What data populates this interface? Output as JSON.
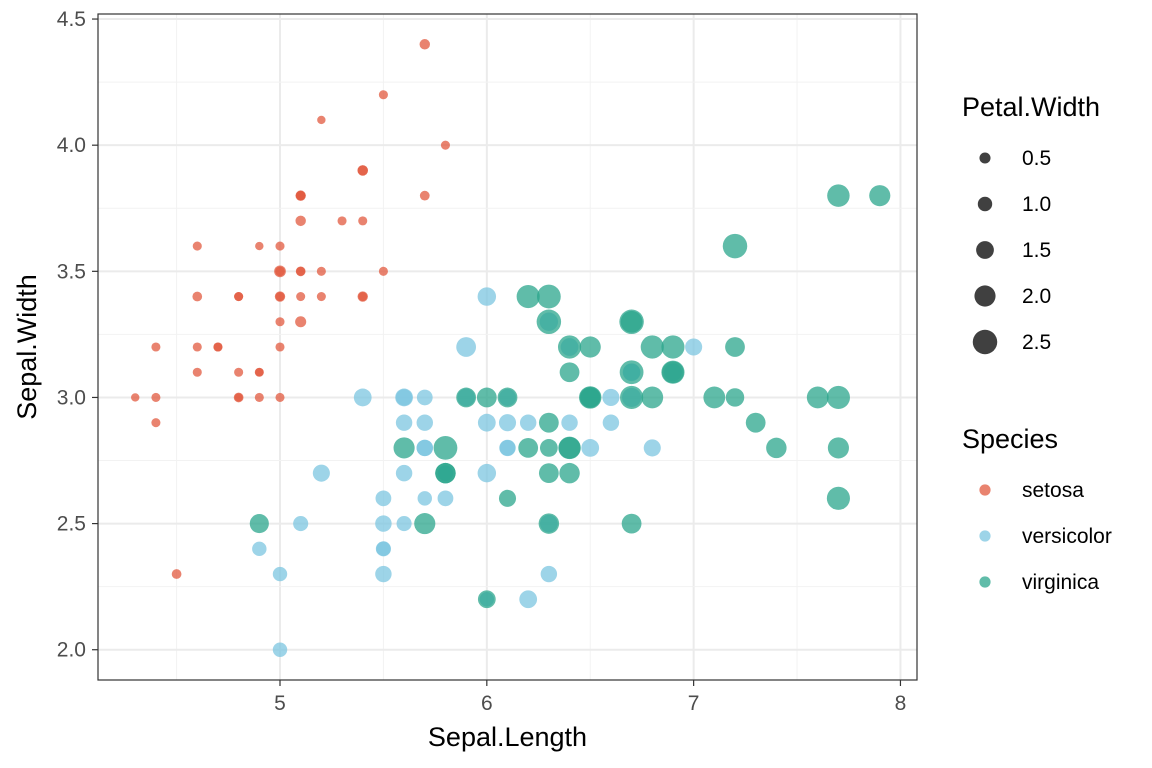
{
  "chart_data": {
    "type": "scatter",
    "title": "",
    "xlabel": "Sepal.Length",
    "ylabel": "Sepal.Width",
    "xlim": [
      4.12,
      8.08
    ],
    "ylim": [
      1.88,
      4.52
    ],
    "xticks": [
      5,
      6,
      7,
      8
    ],
    "yticks": [
      2.0,
      2.5,
      3.0,
      3.5,
      4.0,
      4.5
    ],
    "xtick_labels": [
      "5",
      "6",
      "7",
      "8"
    ],
    "ytick_labels": [
      "2.0",
      "2.5",
      "3.0",
      "3.5",
      "4.0",
      "4.5"
    ],
    "grid": true,
    "size_legend": {
      "title": "Petal.Width",
      "values": [
        0.5,
        1.0,
        1.5,
        2.0,
        2.5
      ],
      "labels": [
        "0.5",
        "1.0",
        "1.5",
        "2.0",
        "2.5"
      ]
    },
    "color_legend": {
      "title": "Species",
      "placement": "right"
    },
    "series": [
      {
        "name": "setosa",
        "color": "#E15A3F",
        "points": [
          [
            5.1,
            3.5,
            0.2
          ],
          [
            4.9,
            3.0,
            0.2
          ],
          [
            4.7,
            3.2,
            0.2
          ],
          [
            4.6,
            3.1,
            0.2
          ],
          [
            5.0,
            3.6,
            0.2
          ],
          [
            5.4,
            3.9,
            0.4
          ],
          [
            4.6,
            3.4,
            0.3
          ],
          [
            5.0,
            3.4,
            0.2
          ],
          [
            4.4,
            2.9,
            0.2
          ],
          [
            4.9,
            3.1,
            0.1
          ],
          [
            5.4,
            3.7,
            0.2
          ],
          [
            4.8,
            3.4,
            0.2
          ],
          [
            4.8,
            3.0,
            0.1
          ],
          [
            4.3,
            3.0,
            0.1
          ],
          [
            5.8,
            4.0,
            0.2
          ],
          [
            5.7,
            4.4,
            0.4
          ],
          [
            5.4,
            3.9,
            0.4
          ],
          [
            5.1,
            3.5,
            0.3
          ],
          [
            5.7,
            3.8,
            0.3
          ],
          [
            5.1,
            3.8,
            0.3
          ],
          [
            5.4,
            3.4,
            0.2
          ],
          [
            5.1,
            3.7,
            0.4
          ],
          [
            4.6,
            3.6,
            0.2
          ],
          [
            5.1,
            3.3,
            0.5
          ],
          [
            4.8,
            3.4,
            0.2
          ],
          [
            5.0,
            3.0,
            0.2
          ],
          [
            5.0,
            3.4,
            0.4
          ],
          [
            5.2,
            3.5,
            0.2
          ],
          [
            5.2,
            3.4,
            0.2
          ],
          [
            4.7,
            3.2,
            0.2
          ],
          [
            4.8,
            3.1,
            0.2
          ],
          [
            5.4,
            3.4,
            0.4
          ],
          [
            5.2,
            4.1,
            0.1
          ],
          [
            5.5,
            4.2,
            0.2
          ],
          [
            4.9,
            3.1,
            0.2
          ],
          [
            5.0,
            3.2,
            0.2
          ],
          [
            5.5,
            3.5,
            0.2
          ],
          [
            4.9,
            3.6,
            0.1
          ],
          [
            4.4,
            3.0,
            0.2
          ],
          [
            5.1,
            3.4,
            0.2
          ],
          [
            5.0,
            3.5,
            0.3
          ],
          [
            4.5,
            2.3,
            0.3
          ],
          [
            4.4,
            3.2,
            0.2
          ],
          [
            5.0,
            3.5,
            0.6
          ],
          [
            5.1,
            3.8,
            0.4
          ],
          [
            4.8,
            3.0,
            0.3
          ],
          [
            5.1,
            3.8,
            0.2
          ],
          [
            4.6,
            3.2,
            0.2
          ],
          [
            5.3,
            3.7,
            0.2
          ],
          [
            5.0,
            3.3,
            0.2
          ]
        ]
      },
      {
        "name": "versicolor",
        "color": "#7CC6E0",
        "points": [
          [
            7.0,
            3.2,
            1.4
          ],
          [
            6.4,
            3.2,
            1.5
          ],
          [
            6.9,
            3.1,
            1.5
          ],
          [
            5.5,
            2.3,
            1.3
          ],
          [
            6.5,
            2.8,
            1.5
          ],
          [
            5.7,
            2.8,
            1.3
          ],
          [
            6.3,
            3.3,
            1.6
          ],
          [
            4.9,
            2.4,
            1.0
          ],
          [
            6.6,
            2.9,
            1.3
          ],
          [
            5.2,
            2.7,
            1.4
          ],
          [
            5.0,
            2.0,
            1.0
          ],
          [
            5.9,
            3.0,
            1.5
          ],
          [
            6.0,
            2.2,
            1.0
          ],
          [
            6.1,
            2.9,
            1.4
          ],
          [
            5.6,
            2.9,
            1.3
          ],
          [
            6.7,
            3.1,
            1.4
          ],
          [
            5.6,
            3.0,
            1.5
          ],
          [
            5.8,
            2.7,
            1.0
          ],
          [
            6.2,
            2.2,
            1.5
          ],
          [
            5.6,
            2.5,
            1.1
          ],
          [
            5.9,
            3.2,
            1.8
          ],
          [
            6.1,
            2.8,
            1.3
          ],
          [
            6.3,
            2.5,
            1.5
          ],
          [
            6.1,
            2.8,
            1.2
          ],
          [
            6.4,
            2.9,
            1.3
          ],
          [
            6.6,
            3.0,
            1.4
          ],
          [
            6.8,
            2.8,
            1.4
          ],
          [
            6.7,
            3.0,
            1.7
          ],
          [
            6.0,
            2.9,
            1.5
          ],
          [
            5.7,
            2.6,
            1.0
          ],
          [
            5.5,
            2.4,
            1.1
          ],
          [
            5.5,
            2.4,
            1.0
          ],
          [
            5.8,
            2.7,
            1.2
          ],
          [
            6.0,
            2.7,
            1.6
          ],
          [
            5.4,
            3.0,
            1.5
          ],
          [
            6.0,
            3.4,
            1.6
          ],
          [
            6.7,
            3.1,
            1.5
          ],
          [
            6.3,
            2.3,
            1.3
          ],
          [
            5.6,
            3.0,
            1.3
          ],
          [
            5.5,
            2.5,
            1.3
          ],
          [
            5.5,
            2.6,
            1.2
          ],
          [
            6.1,
            3.0,
            1.4
          ],
          [
            5.8,
            2.6,
            1.2
          ],
          [
            5.0,
            2.3,
            1.0
          ],
          [
            5.6,
            2.7,
            1.3
          ],
          [
            5.7,
            3.0,
            1.2
          ],
          [
            5.7,
            2.9,
            1.3
          ],
          [
            6.2,
            2.9,
            1.3
          ],
          [
            5.1,
            2.5,
            1.1
          ],
          [
            5.7,
            2.8,
            1.3
          ]
        ]
      },
      {
        "name": "virginica",
        "color": "#2BA58C",
        "points": [
          [
            6.3,
            3.3,
            2.5
          ],
          [
            5.8,
            2.7,
            1.9
          ],
          [
            7.1,
            3.0,
            2.1
          ],
          [
            6.3,
            2.9,
            1.8
          ],
          [
            6.5,
            3.0,
            2.2
          ],
          [
            7.6,
            3.0,
            2.1
          ],
          [
            4.9,
            2.5,
            1.7
          ],
          [
            7.3,
            2.9,
            1.8
          ],
          [
            6.7,
            2.5,
            1.8
          ],
          [
            7.2,
            3.6,
            2.5
          ],
          [
            6.5,
            3.2,
            2.0
          ],
          [
            6.4,
            2.7,
            1.9
          ],
          [
            6.8,
            3.0,
            2.1
          ],
          [
            5.7,
            2.5,
            2.0
          ],
          [
            5.8,
            2.8,
            2.4
          ],
          [
            6.4,
            3.2,
            2.3
          ],
          [
            6.5,
            3.0,
            1.8
          ],
          [
            7.7,
            3.8,
            2.2
          ],
          [
            7.7,
            2.6,
            2.3
          ],
          [
            6.0,
            2.2,
            1.5
          ],
          [
            6.9,
            3.2,
            2.3
          ],
          [
            5.6,
            2.8,
            2.0
          ],
          [
            7.7,
            2.8,
            2.0
          ],
          [
            6.3,
            2.7,
            1.8
          ],
          [
            6.7,
            3.3,
            2.1
          ],
          [
            7.2,
            3.2,
            1.8
          ],
          [
            6.2,
            2.8,
            1.8
          ],
          [
            6.1,
            3.0,
            1.8
          ],
          [
            6.4,
            2.8,
            2.1
          ],
          [
            7.2,
            3.0,
            1.6
          ],
          [
            7.4,
            2.8,
            1.9
          ],
          [
            7.9,
            3.8,
            2.0
          ],
          [
            6.4,
            2.8,
            2.2
          ],
          [
            6.3,
            2.8,
            1.5
          ],
          [
            6.1,
            2.6,
            1.4
          ],
          [
            7.7,
            3.0,
            2.3
          ],
          [
            6.3,
            3.4,
            2.4
          ],
          [
            6.4,
            3.1,
            1.8
          ],
          [
            6.0,
            3.0,
            1.8
          ],
          [
            6.9,
            3.1,
            2.1
          ],
          [
            6.7,
            3.1,
            2.4
          ],
          [
            6.9,
            3.1,
            2.3
          ],
          [
            5.8,
            2.7,
            1.9
          ],
          [
            6.8,
            3.2,
            2.3
          ],
          [
            6.7,
            3.3,
            2.5
          ],
          [
            6.7,
            3.0,
            2.3
          ],
          [
            6.3,
            2.5,
            1.9
          ],
          [
            6.5,
            3.0,
            2.0
          ],
          [
            6.2,
            3.4,
            2.3
          ],
          [
            5.9,
            3.0,
            1.8
          ]
        ]
      }
    ]
  }
}
